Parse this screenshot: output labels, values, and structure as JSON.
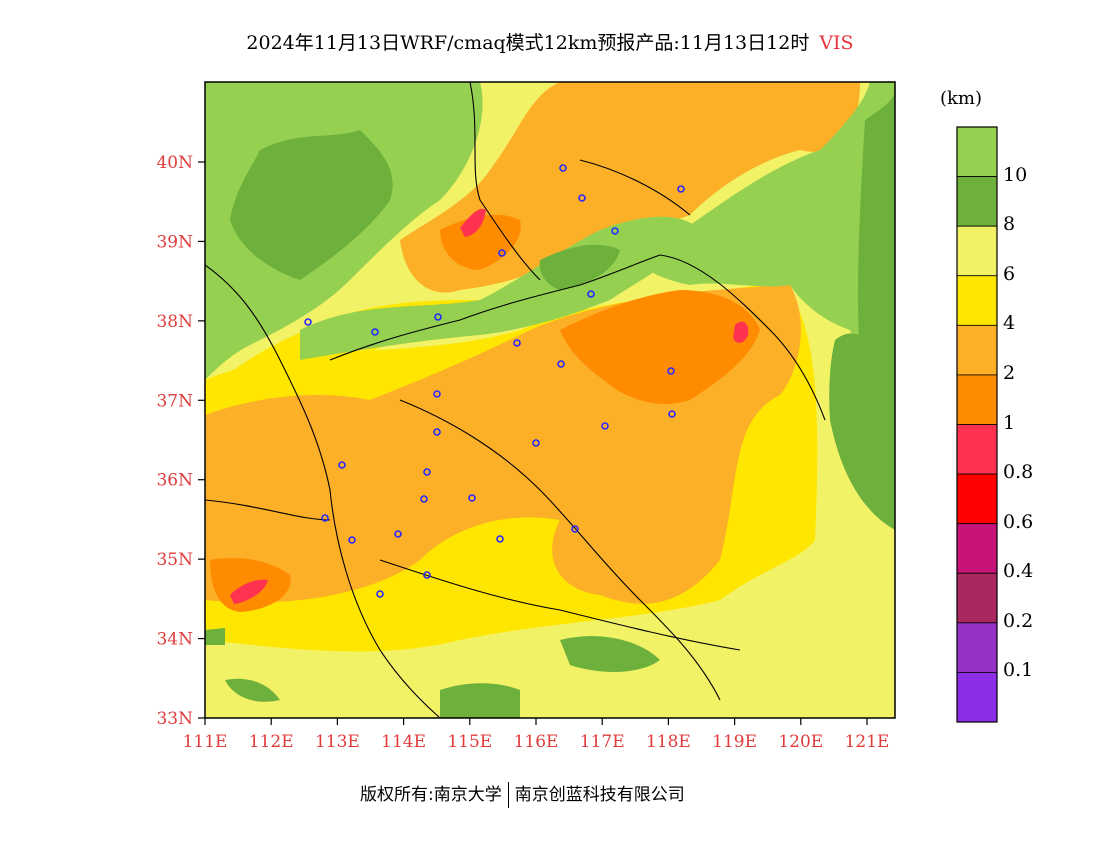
{
  "title": {
    "main": "2024年11月13日WRF/cmaq模式12km预报产品:11月13日12时",
    "variable": "VIS"
  },
  "axes": {
    "lat_labels": [
      "33N",
      "34N",
      "35N",
      "36N",
      "37N",
      "38N",
      "39N",
      "40N"
    ],
    "lon_labels": [
      "111E",
      "112E",
      "113E",
      "114E",
      "115E",
      "116E",
      "117E",
      "118E",
      "119E",
      "120E",
      "121E"
    ]
  },
  "colorbar": {
    "unit": "(km)",
    "bins": [
      {
        "color": "#96d050",
        "label": ""
      },
      {
        "color": "#6eb03c",
        "label": "10"
      },
      {
        "color": "#f2f266",
        "label": "8"
      },
      {
        "color": "#ffe600",
        "label": "6"
      },
      {
        "color": "#fcb028",
        "label": "4"
      },
      {
        "color": "#ff8c00",
        "label": "2"
      },
      {
        "color": "#ff3250",
        "label": "1"
      },
      {
        "color": "#ff0000",
        "label": "0.8"
      },
      {
        "color": "#c81478",
        "label": "0.6"
      },
      {
        "color": "#aa2860",
        "label": "0.4"
      },
      {
        "color": "#9632c8",
        "label": "0.2"
      },
      {
        "color": "#8c2ee6",
        "label": "0.1"
      }
    ]
  },
  "colors": {
    "green_light": "#96d050",
    "green_dark": "#6eb03c",
    "yellow_pale": "#f2f266",
    "yellow": "#ffe600",
    "orange_light": "#fcb028",
    "orange": "#ff8c00",
    "red_pink": "#ff3250",
    "station_marker": "#2828ff",
    "tick_label": "#e03c3c"
  },
  "footer": {
    "copyright": "版权所有:南京大学",
    "company": "南京创蓝科技有限公司"
  }
}
